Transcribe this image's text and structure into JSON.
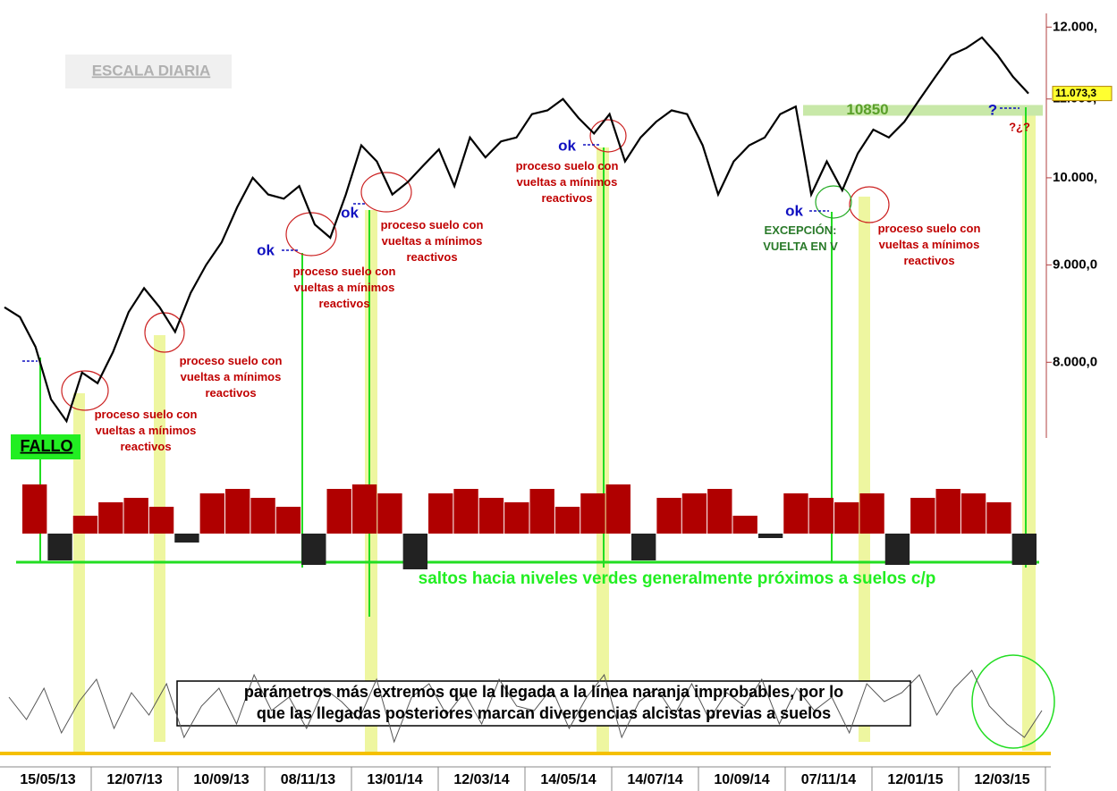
{
  "chart_data": {
    "type": "line",
    "log_scale": true,
    "xticks": [
      "15/05/13",
      "12/07/13",
      "10/09/13",
      "08/11/13",
      "13/01/14",
      "12/03/14",
      "14/05/14",
      "14/07/14",
      "10/09/14",
      "07/11/14",
      "12/01/15",
      "12/03/15"
    ],
    "ylim": [
      7300,
      12200
    ],
    "yticks": [
      {
        "value": 8000,
        "label": "8.000,0"
      },
      {
        "value": 9000,
        "label": "9.000,0"
      },
      {
        "value": 10000,
        "label": "10.000,"
      },
      {
        "value": 11000,
        "label": "11.000,"
      },
      {
        "value": 12000,
        "label": "12.000,"
      }
    ],
    "series": [
      {
        "color": "#000000",
        "values": [
          8550,
          8450,
          8150,
          7650,
          7450,
          7900,
          7800,
          8100,
          8500,
          8750,
          8550,
          8300,
          8700,
          9000,
          9250,
          9650,
          10000,
          9800,
          9750,
          9900,
          9450,
          9300,
          9800,
          10400,
          10200,
          9800,
          9950,
          10150,
          10350,
          9900,
          10500,
          10250,
          10450,
          10500,
          10800,
          10850,
          11000,
          10750,
          10550,
          10800,
          10200,
          10500,
          10700,
          10850,
          10800,
          10400,
          9800,
          10200,
          10400,
          10500,
          10800,
          10900,
          9800,
          10200,
          9850,
          10300,
          10600,
          10500,
          10700,
          11000,
          11300,
          11600,
          11700,
          11850,
          11600,
          11300,
          11073.3
        ]
      }
    ],
    "last_value": {
      "value": 11073.3,
      "label": "11.073,3"
    },
    "level": 10850,
    "histogram": {
      "color": "#b00000",
      "values": [
        55,
        -30,
        20,
        35,
        40,
        30,
        -10,
        45,
        50,
        40,
        30,
        -35,
        50,
        55,
        45,
        -40,
        45,
        50,
        40,
        35,
        50,
        30,
        45,
        55,
        -30,
        40,
        45,
        50,
        20,
        -5,
        45,
        40,
        35,
        45,
        -35,
        40,
        50,
        45,
        35,
        -35
      ]
    },
    "oscillator": {
      "color": "#555555",
      "values": [
        60,
        35,
        70,
        20,
        55,
        80,
        25,
        65,
        40,
        75,
        15,
        50,
        70,
        30,
        85,
        45,
        60,
        25,
        70,
        55,
        35,
        80,
        10,
        60,
        75,
        40,
        65,
        30,
        80,
        50,
        45,
        70,
        25,
        60,
        85,
        15,
        55,
        70,
        40,
        75,
        35,
        65,
        50,
        80,
        30,
        70,
        45,
        60,
        20,
        75,
        55,
        65,
        85,
        40,
        70,
        90,
        50,
        30,
        15,
        45
      ]
    }
  },
  "annotations": {
    "scale": "ESCALA DIARIA",
    "fallo": "FALLO",
    "ok": [
      "ok",
      "ok",
      "ok",
      "ok"
    ],
    "question": "?",
    "question2": "?¿?",
    "exception": [
      "EXCEPCIÓN:",
      "VUELTA EN V"
    ],
    "notes": [
      [
        "proceso suelo con",
        "vueltas a mínimos",
        "reactivos"
      ],
      [
        "proceso suelo con",
        "vueltas a mínimos",
        "reactivos"
      ],
      [
        "proceso suelo con",
        "vueltas a mínimos",
        "reactivos"
      ],
      [
        "proceso suelo con",
        "vueltas a mínimos",
        "reactivos"
      ],
      [
        "proceso suelo con",
        "vueltas a mínimos",
        "reactivos"
      ],
      [
        "proceso suelo con",
        "vueltas a mínimos",
        "reactivos"
      ]
    ],
    "jumps": "saltos hacia niveles verdes generalmente próximos a suelos c/p",
    "box": [
      "parámetros más extremos que la llegada a la línea naranja improbables, por lo",
      "que las llegadas posteriores marcan divergencias alcistas previas a suelos"
    ]
  }
}
